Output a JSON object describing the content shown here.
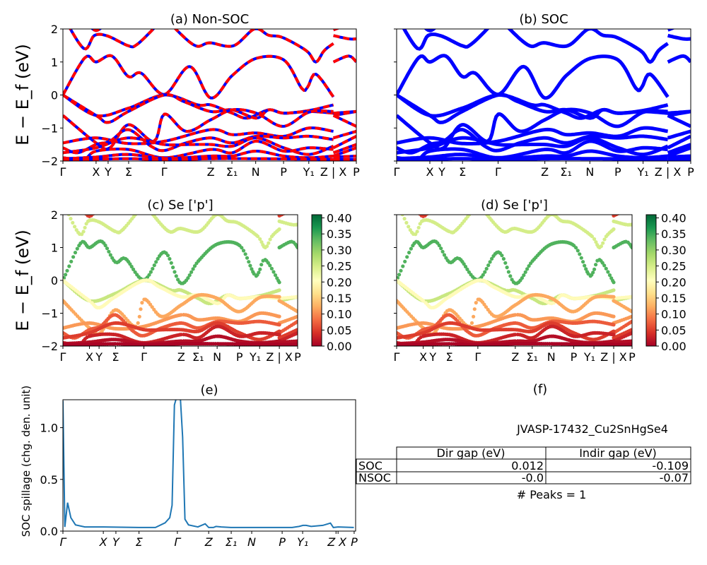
{
  "chart_data": {
    "type": "line",
    "panels": [
      {
        "id": "a",
        "title": "(a) Non-SOC",
        "kind": "bands-nsoc",
        "ylabel": "E − E_f (eV)",
        "ylim": [
          -2,
          2
        ],
        "yticks": [
          "2",
          "1",
          "0",
          "−1",
          "−2"
        ],
        "colors": {
          "line": "#0000ff",
          "dash": "#ff0000"
        }
      },
      {
        "id": "b",
        "title": "(b) SOC",
        "kind": "bands-soc",
        "ylim": [
          -2,
          2
        ],
        "colors": {
          "line": "#0000ff"
        }
      },
      {
        "id": "c",
        "title": "(c)  Se ['p']",
        "kind": "projected",
        "ylabel": "E − E_f (eV)",
        "ylim": [
          -2,
          2
        ],
        "yticks": [
          "2",
          "1",
          "0",
          "−1",
          "−2"
        ]
      },
      {
        "id": "d",
        "title": "(d) Se ['p']",
        "kind": "projected",
        "ylim": [
          -2,
          2
        ]
      }
    ],
    "kpath_ticks": [
      {
        "label": "Γ",
        "k": 0
      },
      {
        "label": "X",
        "k": 0.113
      },
      {
        "label": "Y",
        "k": 0.154
      },
      {
        "label": "Σ",
        "k": 0.224
      },
      {
        "label": "Γ",
        "k": 0.345
      },
      {
        "label": "Z",
        "k": 0.504
      },
      {
        "label": "Σ₁",
        "k": 0.576
      },
      {
        "label": "N",
        "k": 0.657
      },
      {
        "label": "P",
        "k": 0.752
      },
      {
        "label": "Y₁",
        "k": 0.838
      },
      {
        "label": "Z | X",
        "k": 0.922
      },
      {
        "label": "P",
        "k": 1.0
      }
    ],
    "colorbar": {
      "colormap": "RdYlGn",
      "range": [
        0,
        0.41
      ],
      "ticks": [
        "0.00",
        "0.05",
        "0.10",
        "0.15",
        "0.20",
        "0.25",
        "0.30",
        "0.35",
        "0.40"
      ]
    },
    "bands": [
      {
        "weight": 0.25,
        "segments": [
          [
            [
              0,
              2.4
            ],
            [
              0.071,
              1.41
            ],
            [
              0.107,
              1.8
            ],
            [
              0.151,
              1.79
            ],
            [
              0.223,
              1.49
            ],
            [
              0.251,
              1.52
            ],
            [
              0.308,
              2.0
            ],
            [
              0.346,
              2.4
            ],
            [
              0.384,
              2.0
            ],
            [
              0.452,
              1.49
            ],
            [
              0.5,
              1.58
            ],
            [
              0.581,
              1.49
            ],
            [
              0.653,
              2.0
            ],
            [
              0.701,
              1.81
            ],
            [
              0.749,
              1.74
            ],
            [
              0.83,
              1.34
            ],
            [
              0.862,
              1.0
            ],
            [
              0.89,
              1.34
            ],
            [
              0.922,
              1.56
            ]
          ],
          [
            [
              0.922,
              1.8
            ],
            [
              0.974,
              1.7
            ],
            [
              1,
              1.7
            ]
          ]
        ]
      },
      {
        "weight": 0.05,
        "segments": [
          [
            [
              0.08,
              2.2
            ],
            [
              0.113,
              1.95
            ],
            [
              0.15,
              2.2
            ]
          ],
          [
            [
              0.922,
              1.97
            ],
            [
              0.96,
              2.1
            ]
          ]
        ]
      },
      {
        "weight": 0.34,
        "segments": [
          [
            [
              0,
              0
            ],
            [
              0.075,
              1.13
            ],
            [
              0.113,
              1.0
            ],
            [
              0.167,
              1.18
            ],
            [
              0.223,
              0.56
            ],
            [
              0.267,
              0.66
            ],
            [
              0.346,
              0.02
            ],
            [
              0.432,
              0.86
            ],
            [
              0.504,
              -0.09
            ],
            [
              0.577,
              0.59
            ],
            [
              0.659,
              1.11
            ],
            [
              0.753,
              1.06
            ],
            [
              0.814,
              0.2
            ],
            [
              0.834,
              0.24
            ],
            [
              0.862,
              0.63
            ],
            [
              0.922,
              -0.06
            ]
          ],
          [
            [
              0.922,
              1.0
            ],
            [
              0.974,
              1.18
            ],
            [
              1,
              1.0
            ]
          ]
        ]
      },
      {
        "weight": 0.26,
        "segments": [
          [
            [
              0,
              0
            ],
            [
              0.113,
              -0.62
            ],
            [
              0.223,
              -0.4
            ],
            [
              0.346,
              0
            ],
            [
              0.46,
              -0.3
            ],
            [
              0.504,
              -0.3
            ],
            [
              0.577,
              -0.55
            ],
            [
              0.629,
              -0.7
            ],
            [
              0.701,
              -0.45
            ],
            [
              0.753,
              -0.55
            ],
            [
              0.839,
              -0.47
            ],
            [
              0.922,
              -0.3
            ]
          ],
          [
            [
              0.922,
              -0.62
            ],
            [
              1,
              -0.5
            ]
          ]
        ]
      },
      {
        "weight": 0.2,
        "segments": [
          [
            [
              0,
              0
            ],
            [
              0.113,
              -0.62
            ],
            [
              0.155,
              -0.83
            ],
            [
              0.223,
              -0.5
            ],
            [
              0.346,
              0
            ],
            [
              0.412,
              -0.2
            ],
            [
              0.504,
              -0.5
            ],
            [
              0.577,
              -0.45
            ],
            [
              0.659,
              -0.7
            ],
            [
              0.701,
              -0.45
            ],
            [
              0.753,
              -0.55
            ],
            [
              0.839,
              -0.5
            ],
            [
              0.922,
              -0.55
            ]
          ],
          [
            [
              0.922,
              -0.55
            ],
            [
              1,
              -0.5
            ]
          ]
        ]
      },
      {
        "weight": 0.12,
        "segments": [
          [
            [
              0,
              -0.62
            ],
            [
              0.113,
              -1.45
            ],
            [
              0.16,
              -1.6
            ],
            [
              0.223,
              -0.9
            ],
            [
              0.31,
              -1.4
            ],
            [
              0.346,
              -0.58
            ],
            [
              0.42,
              -1.1
            ],
            [
              0.504,
              -0.75
            ],
            [
              0.577,
              -0.45
            ],
            [
              0.659,
              -0.55
            ],
            [
              0.75,
              -0.95
            ],
            [
              0.839,
              -0.52
            ],
            [
              0.922,
              -0.5
            ]
          ],
          [
            [
              0.922,
              -0.62
            ],
            [
              1,
              -0.95
            ]
          ]
        ]
      },
      {
        "weight": 0.11,
        "segments": [
          [
            [
              0,
              -1.45
            ],
            [
              0.113,
              -1.3
            ],
            [
              0.223,
              -1.47
            ],
            [
              0.346,
              -1.4
            ],
            [
              0.504,
              -1.05
            ],
            [
              0.577,
              -1.2
            ],
            [
              0.659,
              -1.15
            ],
            [
              0.753,
              -1.25
            ],
            [
              0.839,
              -1.0
            ],
            [
              0.922,
              -1.1
            ]
          ],
          [
            [
              0.922,
              -1.3
            ],
            [
              1,
              -1.1
            ]
          ]
        ]
      },
      {
        "weight": 0.07,
        "segments": [
          [
            [
              0,
              -1.6
            ],
            [
              0.05,
              -1.75
            ],
            [
              0.113,
              -1.5
            ],
            [
              0.16,
              -1.4
            ],
            [
              0.223,
              -1.05
            ],
            [
              0.3,
              -1.55
            ],
            [
              0.346,
              -1.68
            ],
            [
              0.42,
              -1.45
            ],
            [
              0.504,
              -1.3
            ],
            [
              0.577,
              -1.45
            ],
            [
              0.659,
              -1.25
            ],
            [
              0.753,
              -1.3
            ],
            [
              0.839,
              -1.25
            ],
            [
              0.922,
              -1.35
            ]
          ],
          [
            [
              0.922,
              -1.6
            ],
            [
              1,
              -1.25
            ]
          ]
        ]
      },
      {
        "weight": 0.05,
        "segments": [
          [
            [
              0,
              -1.75
            ],
            [
              0.113,
              -1.6
            ],
            [
              0.223,
              -1.3
            ],
            [
              0.346,
              -1.5
            ],
            [
              0.43,
              -1.5
            ],
            [
              0.504,
              -1.5
            ],
            [
              0.577,
              -1.55
            ],
            [
              0.659,
              -1.3
            ],
            [
              0.753,
              -1.6
            ],
            [
              0.839,
              -1.8
            ],
            [
              0.922,
              -1.55
            ]
          ],
          [
            [
              0.922,
              -1.75
            ],
            [
              1,
              -1.5
            ]
          ]
        ]
      },
      {
        "weight": 0.03,
        "segments": [
          [
            [
              0,
              -1.9
            ],
            [
              0.07,
              -1.95
            ],
            [
              0.113,
              -1.7
            ],
            [
              0.223,
              -1.65
            ],
            [
              0.346,
              -1.9
            ],
            [
              0.504,
              -1.65
            ],
            [
              0.577,
              -1.75
            ],
            [
              0.659,
              -1.4
            ],
            [
              0.753,
              -1.7
            ],
            [
              0.839,
              -1.6
            ],
            [
              0.922,
              -1.65
            ]
          ],
          [
            [
              0.922,
              -1.85
            ],
            [
              1,
              -1.6
            ]
          ]
        ]
      },
      {
        "weight": 0.012,
        "segments": [
          [
            [
              0,
              -1.93
            ],
            [
              0.113,
              -1.88
            ],
            [
              0.223,
              -1.8
            ],
            [
              0.346,
              -1.92
            ],
            [
              0.504,
              -1.85
            ],
            [
              0.577,
              -1.85
            ],
            [
              0.659,
              -1.7
            ],
            [
              0.753,
              -1.85
            ],
            [
              0.839,
              -1.9
            ],
            [
              0.922,
              -1.85
            ]
          ],
          [
            [
              0.922,
              -1.88
            ],
            [
              1,
              -1.85
            ]
          ]
        ]
      },
      {
        "weight": 0.004,
        "segments": [
          [
            [
              0,
              -1.97
            ],
            [
              0.223,
              -1.93
            ],
            [
              0.346,
              -1.97
            ],
            [
              0.504,
              -1.93
            ],
            [
              0.659,
              -1.93
            ],
            [
              0.922,
              -1.95
            ]
          ],
          [
            [
              0.922,
              -1.96
            ],
            [
              1,
              -1.95
            ]
          ]
        ]
      }
    ],
    "spillage": {
      "title": "(e)",
      "ylabel": "SOC spillage (chg. den. unit)",
      "ylim": [
        0,
        1.27
      ],
      "yticks": [
        {
          "label": "0.0",
          "v": 0
        },
        {
          "label": "0.5",
          "v": 0.5
        },
        {
          "label": "1.0",
          "v": 1.0
        }
      ],
      "color": "#1f77b4",
      "ticks": [
        {
          "label": "Γ",
          "k": 0
        },
        {
          "label": "X",
          "k": 0.138
        },
        {
          "label": "Y",
          "k": 0.181
        },
        {
          "label": "Σ",
          "k": 0.26
        },
        {
          "label": "Γ",
          "k": 0.391
        },
        {
          "label": "Z",
          "k": 0.498
        },
        {
          "label": "Σ₁",
          "k": 0.575
        },
        {
          "label": "N",
          "k": 0.645
        },
        {
          "label": "P",
          "k": 0.749
        },
        {
          "label": "Y₁",
          "k": 0.819
        },
        {
          "label": "Z",
          "k": 0.933
        },
        {
          "label": "X",
          "k": 0.94
        },
        {
          "label": "P",
          "k": 0.995
        }
      ],
      "x": [
        0,
        0.0065,
        0.016,
        0.027,
        0.043,
        0.075,
        0.139,
        0.26,
        0.316,
        0.349,
        0.365,
        0.373,
        0.381,
        0.389,
        0.401,
        0.409,
        0.417,
        0.429,
        0.461,
        0.486,
        0.498,
        0.514,
        0.523,
        0.541,
        0.574,
        0.783,
        0.807,
        0.82,
        0.831,
        0.848,
        0.888,
        0.914,
        0.924,
        0.94,
        0.994
      ],
      "y": [
        1.26,
        0.04,
        0.275,
        0.13,
        0.06,
        0.04,
        0.04,
        0.035,
        0.035,
        0.08,
        0.13,
        0.25,
        1.22,
        1.3,
        1.3,
        0.91,
        0.115,
        0.06,
        0.04,
        0.07,
        0.035,
        0.035,
        0.045,
        0.04,
        0.035,
        0.035,
        0.045,
        0.055,
        0.055,
        0.045,
        0.055,
        0.077,
        0.035,
        0.04,
        0.035
      ]
    }
  },
  "panel_f": {
    "title": "(f)",
    "material": "JVASP-17432_Cu2SnHgSe4",
    "table": {
      "columns": [
        "Dir gap (eV)",
        "Indir gap (eV)"
      ],
      "rows": [
        {
          "label": "SOC",
          "values": [
            "0.012",
            "-0.109"
          ]
        },
        {
          "label": "NSOC",
          "values": [
            "-0.0",
            "-0.07"
          ]
        }
      ]
    },
    "peaks": "# Peaks = 1"
  }
}
